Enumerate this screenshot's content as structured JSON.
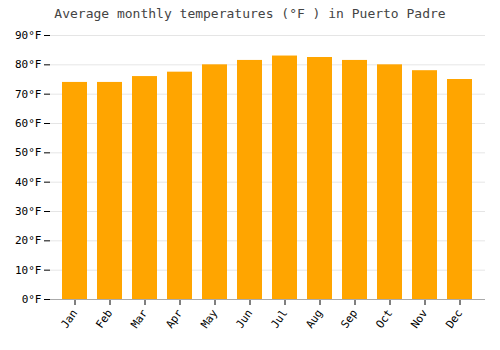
{
  "chart_data": {
    "type": "bar",
    "title": "Average monthly temperatures (°F ) in Puerto Padre",
    "categories": [
      "Jan",
      "Feb",
      "Mar",
      "Apr",
      "May",
      "Jun",
      "Jul",
      "Aug",
      "Sep",
      "Oct",
      "Nov",
      "Dec"
    ],
    "values": [
      74,
      74,
      76,
      77.5,
      80,
      81.5,
      83,
      82.5,
      81.5,
      80,
      78,
      75
    ],
    "color": "#FFA500",
    "ylim": [
      0,
      90
    ],
    "yticks": [
      {
        "value": 0,
        "label": "0°F"
      },
      {
        "value": 10,
        "label": "10°F"
      },
      {
        "value": 20,
        "label": "20°F"
      },
      {
        "value": 30,
        "label": "30°F"
      },
      {
        "value": 40,
        "label": "40°F"
      },
      {
        "value": 50,
        "label": "50°F"
      },
      {
        "value": 60,
        "label": "60°F"
      },
      {
        "value": 70,
        "label": "70°F"
      },
      {
        "value": 80,
        "label": "80°F"
      },
      {
        "value": 90,
        "label": "90°F"
      }
    ],
    "grid": true
  }
}
